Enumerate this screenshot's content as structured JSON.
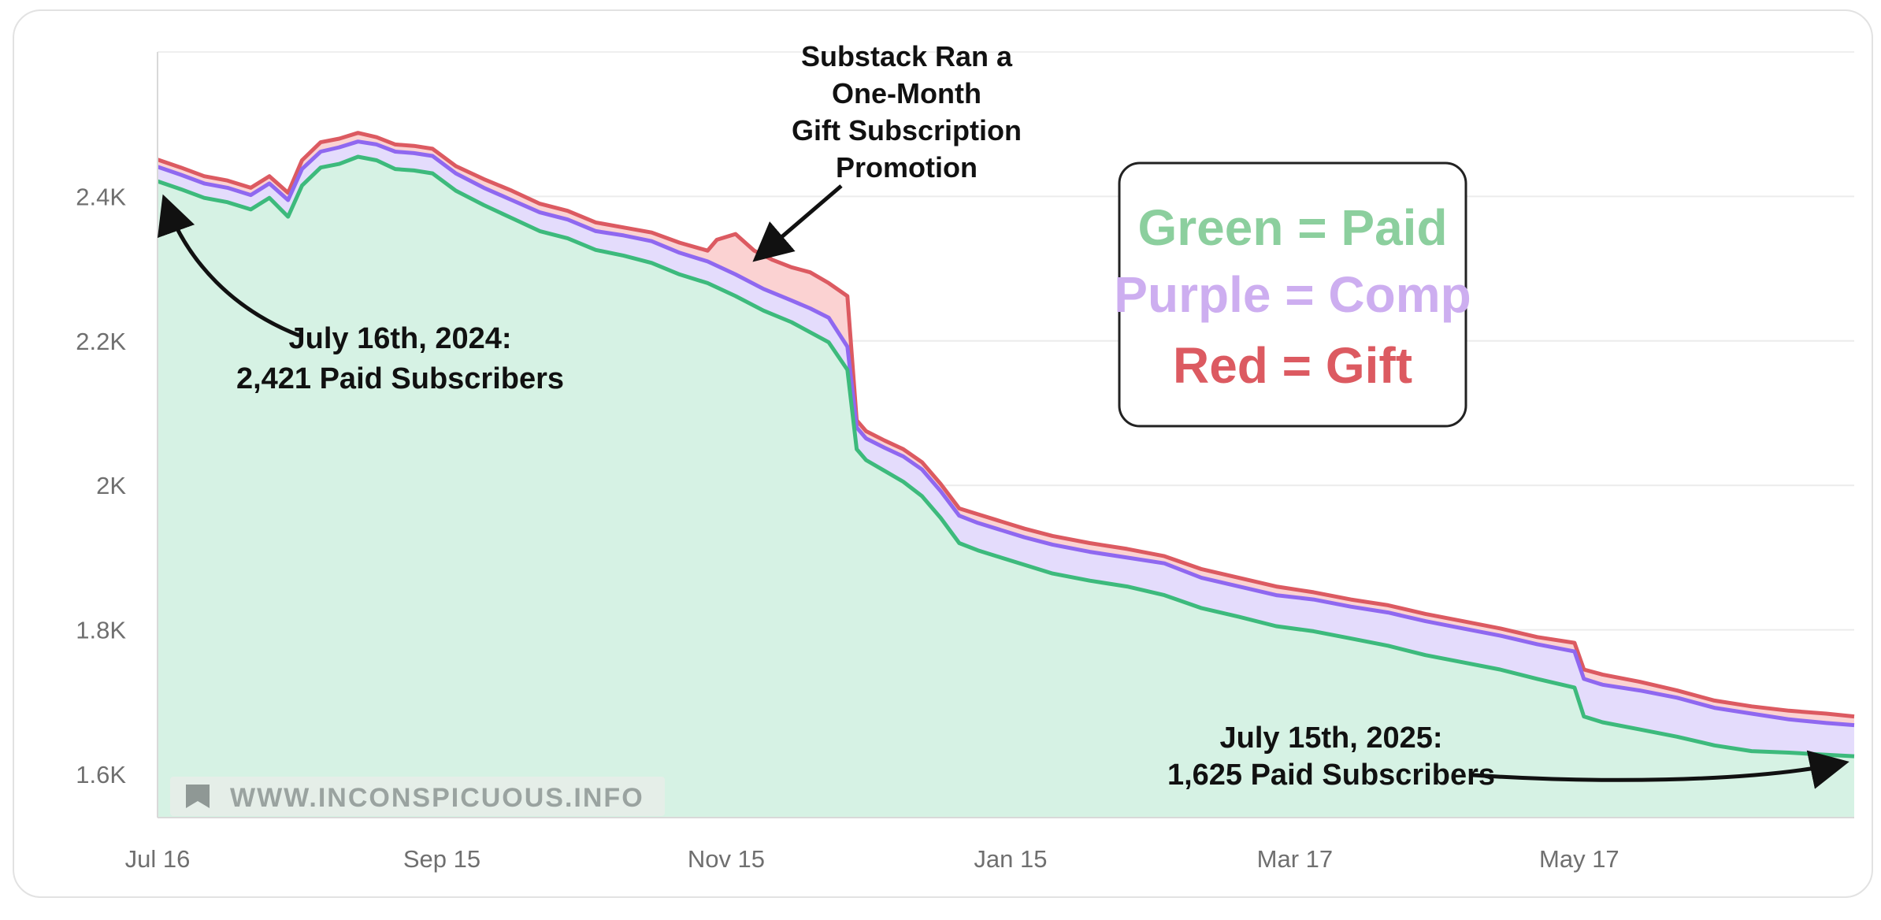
{
  "chart_data": {
    "type": "area",
    "title": "",
    "xlabel": "",
    "ylabel": "",
    "ylim": [
      1540,
      2600
    ],
    "y_ticks": [
      {
        "value": 1600,
        "label": "1.6K"
      },
      {
        "value": 1800,
        "label": "1.8K"
      },
      {
        "value": 2000,
        "label": "2K"
      },
      {
        "value": 2200,
        "label": "2.2K"
      },
      {
        "value": 2400,
        "label": "2.4K"
      }
    ],
    "xlim": [
      0,
      364
    ],
    "x_ticks": [
      {
        "value": 0,
        "label": "Jul 16"
      },
      {
        "value": 61,
        "label": "Sep 15"
      },
      {
        "value": 122,
        "label": "Nov 15"
      },
      {
        "value": 183,
        "label": "Jan 15"
      },
      {
        "value": 244,
        "label": "Mar 17"
      },
      {
        "value": 305,
        "label": "May 17"
      }
    ],
    "series": [
      {
        "name": "Paid",
        "color": "#3dba7c",
        "fill": "#d6f2e4",
        "points": [
          [
            0,
            2421
          ],
          [
            5,
            2410
          ],
          [
            10,
            2398
          ],
          [
            15,
            2392
          ],
          [
            20,
            2382
          ],
          [
            24,
            2398
          ],
          [
            28,
            2372
          ],
          [
            31,
            2415
          ],
          [
            35,
            2440
          ],
          [
            39,
            2445
          ],
          [
            43,
            2455
          ],
          [
            47,
            2450
          ],
          [
            51,
            2438
          ],
          [
            55,
            2436
          ],
          [
            59,
            2432
          ],
          [
            64,
            2408
          ],
          [
            70,
            2388
          ],
          [
            76,
            2370
          ],
          [
            82,
            2352
          ],
          [
            88,
            2342
          ],
          [
            94,
            2326
          ],
          [
            100,
            2318
          ],
          [
            106,
            2308
          ],
          [
            112,
            2292
          ],
          [
            118,
            2280
          ],
          [
            124,
            2262
          ],
          [
            130,
            2242
          ],
          [
            136,
            2226
          ],
          [
            140,
            2212
          ],
          [
            144,
            2198
          ],
          [
            148,
            2160
          ],
          [
            150,
            2050
          ],
          [
            152,
            2035
          ],
          [
            156,
            2020
          ],
          [
            160,
            2005
          ],
          [
            164,
            1985
          ],
          [
            168,
            1955
          ],
          [
            172,
            1920
          ],
          [
            176,
            1910
          ],
          [
            180,
            1902
          ],
          [
            186,
            1890
          ],
          [
            192,
            1878
          ],
          [
            200,
            1868
          ],
          [
            208,
            1860
          ],
          [
            216,
            1848
          ],
          [
            224,
            1830
          ],
          [
            232,
            1818
          ],
          [
            240,
            1805
          ],
          [
            248,
            1798
          ],
          [
            256,
            1788
          ],
          [
            264,
            1778
          ],
          [
            272,
            1765
          ],
          [
            280,
            1755
          ],
          [
            288,
            1745
          ],
          [
            296,
            1732
          ],
          [
            304,
            1720
          ],
          [
            306,
            1680
          ],
          [
            310,
            1672
          ],
          [
            318,
            1662
          ],
          [
            326,
            1652
          ],
          [
            334,
            1640
          ],
          [
            342,
            1632
          ],
          [
            350,
            1630
          ],
          [
            358,
            1627
          ],
          [
            364,
            1625
          ]
        ]
      },
      {
        "name": "Comp",
        "color": "#8f68f0",
        "fill": "#e4dcfc",
        "points": [
          [
            0,
            2441
          ],
          [
            5,
            2430
          ],
          [
            10,
            2418
          ],
          [
            15,
            2412
          ],
          [
            20,
            2402
          ],
          [
            24,
            2418
          ],
          [
            28,
            2395
          ],
          [
            31,
            2438
          ],
          [
            35,
            2462
          ],
          [
            39,
            2468
          ],
          [
            43,
            2476
          ],
          [
            47,
            2472
          ],
          [
            51,
            2462
          ],
          [
            55,
            2460
          ],
          [
            59,
            2456
          ],
          [
            64,
            2432
          ],
          [
            70,
            2412
          ],
          [
            76,
            2395
          ],
          [
            82,
            2378
          ],
          [
            88,
            2368
          ],
          [
            94,
            2352
          ],
          [
            100,
            2346
          ],
          [
            106,
            2338
          ],
          [
            112,
            2322
          ],
          [
            118,
            2310
          ],
          [
            124,
            2292
          ],
          [
            130,
            2272
          ],
          [
            136,
            2256
          ],
          [
            140,
            2245
          ],
          [
            144,
            2232
          ],
          [
            148,
            2192
          ],
          [
            150,
            2080
          ],
          [
            152,
            2065
          ],
          [
            156,
            2052
          ],
          [
            160,
            2040
          ],
          [
            164,
            2022
          ],
          [
            168,
            1992
          ],
          [
            172,
            1958
          ],
          [
            176,
            1948
          ],
          [
            180,
            1940
          ],
          [
            186,
            1928
          ],
          [
            192,
            1918
          ],
          [
            200,
            1908
          ],
          [
            208,
            1900
          ],
          [
            216,
            1892
          ],
          [
            224,
            1872
          ],
          [
            232,
            1860
          ],
          [
            240,
            1848
          ],
          [
            248,
            1842
          ],
          [
            256,
            1832
          ],
          [
            264,
            1824
          ],
          [
            272,
            1812
          ],
          [
            280,
            1802
          ],
          [
            288,
            1792
          ],
          [
            296,
            1780
          ],
          [
            304,
            1770
          ],
          [
            306,
            1732
          ],
          [
            310,
            1724
          ],
          [
            318,
            1716
          ],
          [
            326,
            1706
          ],
          [
            334,
            1692
          ],
          [
            342,
            1684
          ],
          [
            350,
            1676
          ],
          [
            358,
            1671
          ],
          [
            364,
            1668
          ]
        ]
      },
      {
        "name": "Gift",
        "color": "#dc5a61",
        "fill": "#fbd2d2",
        "points": [
          [
            0,
            2451
          ],
          [
            5,
            2440
          ],
          [
            10,
            2428
          ],
          [
            15,
            2422
          ],
          [
            20,
            2412
          ],
          [
            24,
            2428
          ],
          [
            28,
            2405
          ],
          [
            31,
            2450
          ],
          [
            35,
            2475
          ],
          [
            39,
            2480
          ],
          [
            43,
            2488
          ],
          [
            47,
            2482
          ],
          [
            51,
            2472
          ],
          [
            55,
            2470
          ],
          [
            59,
            2466
          ],
          [
            64,
            2442
          ],
          [
            70,
            2424
          ],
          [
            76,
            2408
          ],
          [
            82,
            2390
          ],
          [
            88,
            2380
          ],
          [
            94,
            2364
          ],
          [
            100,
            2357
          ],
          [
            106,
            2350
          ],
          [
            112,
            2336
          ],
          [
            118,
            2325
          ],
          [
            120,
            2340
          ],
          [
            124,
            2348
          ],
          [
            128,
            2325
          ],
          [
            132,
            2312
          ],
          [
            136,
            2302
          ],
          [
            140,
            2295
          ],
          [
            144,
            2280
          ],
          [
            148,
            2262
          ],
          [
            150,
            2090
          ],
          [
            152,
            2075
          ],
          [
            156,
            2062
          ],
          [
            160,
            2050
          ],
          [
            164,
            2032
          ],
          [
            168,
            2002
          ],
          [
            172,
            1968
          ],
          [
            176,
            1960
          ],
          [
            180,
            1952
          ],
          [
            186,
            1940
          ],
          [
            192,
            1930
          ],
          [
            200,
            1920
          ],
          [
            208,
            1912
          ],
          [
            216,
            1902
          ],
          [
            224,
            1884
          ],
          [
            232,
            1872
          ],
          [
            240,
            1860
          ],
          [
            248,
            1852
          ],
          [
            256,
            1842
          ],
          [
            264,
            1834
          ],
          [
            272,
            1822
          ],
          [
            280,
            1812
          ],
          [
            288,
            1802
          ],
          [
            296,
            1790
          ],
          [
            304,
            1782
          ],
          [
            306,
            1745
          ],
          [
            310,
            1738
          ],
          [
            318,
            1728
          ],
          [
            326,
            1716
          ],
          [
            334,
            1702
          ],
          [
            342,
            1694
          ],
          [
            350,
            1688
          ],
          [
            358,
            1684
          ],
          [
            364,
            1680
          ]
        ]
      }
    ],
    "annotations": [
      {
        "lines": [
          "Substack Ran a",
          "One-Month",
          "Gift Subscription",
          "Promotion"
        ]
      },
      {
        "lines": [
          "July 16th, 2024:",
          "2,421 Paid Subscribers"
        ]
      },
      {
        "lines": [
          "July 15th, 2025:",
          "1,625 Paid Subscribers"
        ]
      }
    ],
    "legend": {
      "lines": [
        "Green = Paid",
        "Purple = Comp",
        "Red = Gift"
      ],
      "colors": [
        "#8ccf9e",
        "#cdaef0",
        "#dc5a61"
      ]
    }
  },
  "watermark": {
    "text": "WWW.INCONSPICUOUS.INFO",
    "icon": "bookmark-icon"
  }
}
